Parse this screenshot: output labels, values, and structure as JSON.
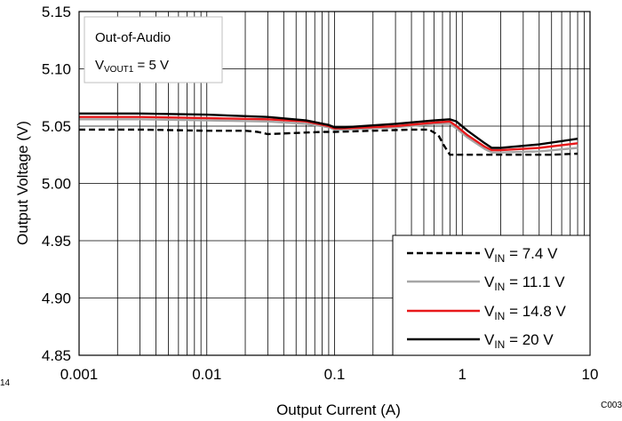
{
  "chart_data": {
    "type": "line",
    "xscale": "log",
    "xlabel": "Output Current (A)",
    "ylabel": "Output Voltage (V)",
    "xlim": [
      0.001,
      10
    ],
    "ylim": [
      4.85,
      5.15
    ],
    "xticks": [
      0.001,
      0.01,
      0.1,
      1,
      10
    ],
    "xtick_labels": [
      "0.001",
      "0.01",
      "0.1",
      "1",
      "10"
    ],
    "yticks": [
      4.85,
      4.9,
      4.95,
      5.0,
      5.05,
      5.1,
      5.15
    ],
    "ytick_labels": [
      "4.85",
      "4.90",
      "4.95",
      "5.00",
      "5.05",
      "5.10",
      "5.15"
    ],
    "grid": {
      "x_minor_log": true,
      "y_major": true
    },
    "annotation": {
      "line1": "Out-of-Audio",
      "line2_main": "V",
      "line2_sub": "VOUT1",
      "line2_rest": " = 5 V"
    },
    "legend_position": "bottom-right",
    "corner_left": "14",
    "corner_right": "C003",
    "series": [
      {
        "name_main": "V",
        "name_sub": "IN",
        "name_rest": " = 7.4 V",
        "color": "#000000",
        "dash": true,
        "x": [
          0.001,
          0.003,
          0.01,
          0.02,
          0.025,
          0.03,
          0.05,
          0.08,
          0.1,
          0.2,
          0.4,
          0.55,
          0.65,
          0.72,
          0.8,
          1.0,
          2.0,
          5.0,
          8.0
        ],
        "y": [
          5.047,
          5.047,
          5.046,
          5.046,
          5.045,
          5.043,
          5.044,
          5.045,
          5.045,
          5.046,
          5.047,
          5.047,
          5.042,
          5.033,
          5.025,
          5.025,
          5.025,
          5.025,
          5.026
        ]
      },
      {
        "name_main": "V",
        "name_sub": "IN",
        "name_rest": " = 11.1 V",
        "color": "#a6a6a6",
        "dash": false,
        "x": [
          0.001,
          0.003,
          0.01,
          0.03,
          0.06,
          0.09,
          0.1,
          0.12,
          0.3,
          0.6,
          0.8,
          0.9,
          1.1,
          1.5,
          1.7,
          2.0,
          4.0,
          8.0
        ],
        "y": [
          5.056,
          5.056,
          5.055,
          5.054,
          5.052,
          5.049,
          5.047,
          5.047,
          5.049,
          5.052,
          5.052,
          5.048,
          5.04,
          5.03,
          5.027,
          5.027,
          5.028,
          5.031
        ]
      },
      {
        "name_main": "V",
        "name_sub": "IN",
        "name_rest": " = 14.8 V",
        "color": "#e8191b",
        "dash": false,
        "x": [
          0.001,
          0.003,
          0.01,
          0.03,
          0.06,
          0.09,
          0.1,
          0.12,
          0.3,
          0.6,
          0.8,
          0.9,
          1.1,
          1.5,
          1.7,
          2.0,
          4.0,
          8.0
        ],
        "y": [
          5.058,
          5.058,
          5.057,
          5.056,
          5.054,
          5.05,
          5.048,
          5.048,
          5.05,
          5.053,
          5.054,
          5.05,
          5.042,
          5.032,
          5.029,
          5.029,
          5.031,
          5.035
        ]
      },
      {
        "name_main": "V",
        "name_sub": "IN",
        "name_rest": " = 20 V",
        "color": "#000000",
        "dash": false,
        "x": [
          0.001,
          0.003,
          0.01,
          0.03,
          0.06,
          0.09,
          0.1,
          0.12,
          0.3,
          0.6,
          0.8,
          0.9,
          1.1,
          1.5,
          1.7,
          2.0,
          4.0,
          8.0
        ],
        "y": [
          5.061,
          5.061,
          5.06,
          5.058,
          5.055,
          5.051,
          5.049,
          5.049,
          5.052,
          5.055,
          5.056,
          5.054,
          5.046,
          5.035,
          5.031,
          5.031,
          5.034,
          5.039
        ]
      }
    ]
  }
}
